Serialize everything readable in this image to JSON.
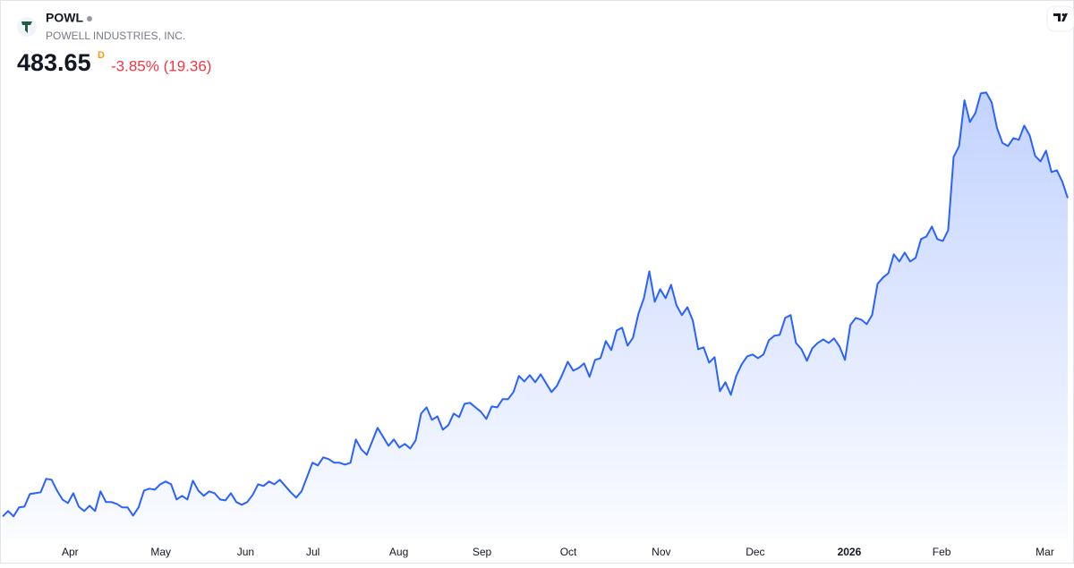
{
  "chart_data": {
    "type": "area",
    "symbol": "POWL",
    "company": "POWELL INDUSTRIES, INC.",
    "price": 483.65,
    "interval": "D",
    "change": "-3.85% (19.36)",
    "color": "#2962ff",
    "ylim": [
      150,
      600
    ],
    "xlim": [
      0,
      196
    ],
    "xticks": [
      {
        "value": 12.4,
        "label": "Apr"
      },
      {
        "value": 29.1,
        "label": "May"
      },
      {
        "value": 44.7,
        "label": "Jun"
      },
      {
        "value": 57.1,
        "label": "Jul"
      },
      {
        "value": 72.9,
        "label": "Aug"
      },
      {
        "value": 88.2,
        "label": "Sep"
      },
      {
        "value": 104.1,
        "label": "Oct"
      },
      {
        "value": 121.2,
        "label": "Nov"
      },
      {
        "value": 138.5,
        "label": "Dec"
      },
      {
        "value": 155.8,
        "label": "2026"
      },
      {
        "value": 172.8,
        "label": "Feb"
      },
      {
        "value": 191.8,
        "label": "Mar"
      }
    ],
    "values": [
      173.3,
      178.5,
      173.3,
      182.0,
      182.8,
      195.1,
      195.9,
      196.8,
      209.9,
      209.0,
      198.5,
      189.8,
      186.3,
      195.9,
      182.8,
      178.5,
      183.7,
      178.5,
      197.7,
      187.2,
      187.2,
      185.5,
      182.0,
      182.0,
      174.1,
      182.0,
      198.5,
      200.3,
      199.4,
      204.6,
      207.3,
      204.6,
      189.8,
      193.3,
      189.8,
      208.1,
      198.5,
      193.3,
      197.7,
      195.9,
      189.8,
      188.9,
      195.9,
      187.2,
      184.6,
      187.2,
      194.2,
      204.6,
      202.9,
      207.3,
      204.6,
      209.0,
      202.9,
      196.8,
      191.6,
      197.7,
      211.6,
      225.6,
      223.0,
      230.8,
      229.1,
      225.6,
      225.6,
      223.8,
      225.6,
      248.3,
      238.7,
      233.4,
      246.5,
      259.6,
      250.9,
      242.1,
      248.3,
      240.4,
      243.9,
      239.5,
      247.4,
      273.5,
      279.6,
      267.4,
      270.9,
      257.8,
      262.2,
      273.5,
      270.1,
      283.1,
      284.0,
      279.6,
      275.3,
      268.3,
      280.5,
      279.6,
      287.5,
      287.5,
      294.5,
      310.2,
      304.9,
      311.0,
      304.1,
      311.9,
      303.2,
      294.5,
      300.6,
      311.9,
      324.1,
      315.4,
      318.0,
      322.4,
      309.3,
      325.8,
      327.6,
      344.2,
      335.4,
      354.6,
      357.2,
      339.8,
      347.6,
      371.2,
      386.0,
      412.2,
      382.5,
      394.8,
      386.0,
      399.1,
      379.0,
      369.5,
      377.3,
      364.2,
      336.3,
      338.1,
      323.2,
      328.5,
      295.3,
      304.1,
      291.8,
      310.2,
      321.5,
      329.3,
      331.1,
      327.6,
      331.1,
      345.0,
      349.4,
      350.3,
      366.8,
      369.5,
      342.4,
      336.3,
      325.0,
      337.2,
      342.4,
      345.9,
      342.4,
      346.8,
      338.9,
      325.8,
      359.9,
      366.8,
      365.1,
      360.7,
      369.5,
      400.0,
      406.1,
      410.4,
      428.8,
      421.8,
      430.5,
      421.8,
      425.3,
      443.6,
      446.2,
      455.8,
      443.6,
      441.8,
      452.3,
      523.8,
      534.3,
      579.0,
      557.8,
      566.5,
      585.7,
      586.6,
      577.0,
      551.7,
      537.4,
      534.3,
      542.1,
      540.4,
      554.3,
      544.7,
      524.7,
      519.4,
      529.9,
      509.0,
      510.7,
      499.7,
      483.65
    ]
  }
}
